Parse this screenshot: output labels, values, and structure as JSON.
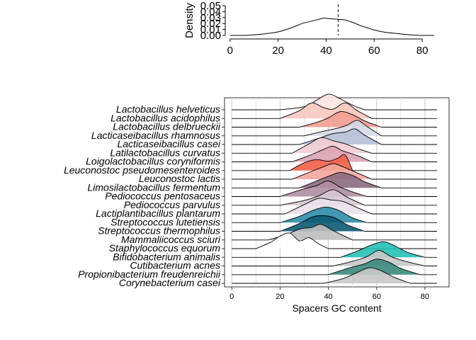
{
  "chart_data": [
    {
      "type": "area",
      "ylabel": "Density",
      "xlabel": "",
      "xlim": [
        -2,
        90
      ],
      "ylim": [
        0,
        0.05
      ],
      "xticks": [
        0,
        20,
        40,
        60,
        80
      ],
      "yticks": [
        0.0,
        0.01,
        0.02,
        0.03,
        0.04,
        0.05
      ],
      "ytick_labels": [
        "0.00",
        "0.01",
        "0.02",
        "0.03",
        "0.04",
        "0.05"
      ],
      "reference_line_x": 45,
      "reference_line_style": "dashed",
      "grid": false,
      "x": [
        0,
        5,
        10,
        15,
        20,
        25,
        30,
        33,
        36,
        39,
        42,
        45,
        48,
        51,
        54,
        57,
        60,
        65,
        70,
        75,
        80,
        85
      ],
      "y": [
        0.0,
        0.0,
        0.001,
        0.003,
        0.006,
        0.012,
        0.02,
        0.023,
        0.026,
        0.029,
        0.028,
        0.027,
        0.026,
        0.022,
        0.017,
        0.013,
        0.009,
        0.005,
        0.003,
        0.001,
        0.0,
        0.0
      ]
    },
    {
      "type": "area",
      "subtype": "ridgeline",
      "xlabel": "Spacers GC content",
      "ylabel": "",
      "xlim": [
        -3,
        90
      ],
      "xticks": [
        0,
        20,
        40,
        60,
        80
      ],
      "grid": true,
      "series": [
        {
          "name": "Lactobacillus helveticus",
          "color": "#fbe6e1",
          "x": [
            20,
            30,
            35,
            40,
            45,
            50,
            55
          ],
          "values": [
            0,
            0.2,
            0.6,
            1.0,
            0.7,
            0.3,
            0
          ]
        },
        {
          "name": "Lactobacillus acidophilus",
          "color": "#f6c8c0",
          "x": [
            20,
            28,
            33,
            38,
            42,
            47,
            52,
            58
          ],
          "values": [
            0,
            0.5,
            1.0,
            0.7,
            0.6,
            1.0,
            0.5,
            0
          ]
        },
        {
          "name": "Lactobacillus delbrueckii",
          "color": "#f19c8e",
          "x": [
            28,
            35,
            40,
            45,
            50,
            55,
            62
          ],
          "values": [
            0,
            0.3,
            0.6,
            1.0,
            0.8,
            0.4,
            0
          ]
        },
        {
          "name": "Lacticaseibacillus rhamnosus",
          "color": "#d5d9e6",
          "x": [
            30,
            38,
            44,
            48,
            52,
            56,
            62
          ],
          "values": [
            0,
            0.3,
            0.5,
            0.7,
            1.0,
            0.6,
            0
          ]
        },
        {
          "name": "Lacticaseibacillus casei",
          "color": "#b5c1d9",
          "x": [
            28,
            36,
            42,
            47,
            51,
            55,
            62
          ],
          "values": [
            0,
            0.4,
            0.7,
            0.8,
            1.0,
            0.6,
            0
          ]
        },
        {
          "name": "Latilactobacillus curvatus",
          "color": "#f2ccd4",
          "x": [
            25,
            32,
            37,
            42,
            47,
            52,
            58
          ],
          "values": [
            0,
            0.6,
            1.0,
            0.8,
            0.6,
            0.3,
            0
          ]
        },
        {
          "name": "Loigolactobacillus coryniformis",
          "color": "#dba3b3",
          "x": [
            25,
            32,
            38,
            42,
            46,
            52,
            58
          ],
          "values": [
            0,
            0.4,
            0.8,
            1.0,
            0.7,
            0.4,
            0
          ]
        },
        {
          "name": "Leuconostoc pseudomesenteroides",
          "color": "#f25f45",
          "x": [
            24,
            30,
            35,
            40,
            44,
            47,
            50
          ],
          "values": [
            0,
            0.5,
            0.7,
            0.6,
            0.8,
            1.0,
            0
          ]
        },
        {
          "name": "Leuconostoc lactis",
          "color": "#f4a6a0",
          "x": [
            25,
            33,
            38,
            42,
            46,
            52,
            58
          ],
          "values": [
            0,
            0.5,
            0.8,
            1.0,
            0.8,
            0.4,
            0
          ]
        },
        {
          "name": "Limosilactobacillus fermentum",
          "color": "#8b6b7e",
          "x": [
            28,
            36,
            41,
            45,
            50,
            55,
            62
          ],
          "values": [
            0,
            0.5,
            0.8,
            1.0,
            0.8,
            0.4,
            0
          ]
        },
        {
          "name": "Pediococcus pentosaceus",
          "color": "#b08ea3",
          "x": [
            20,
            28,
            35,
            40,
            45,
            50,
            56
          ],
          "values": [
            0,
            0.4,
            0.7,
            1.0,
            0.6,
            0.3,
            0
          ]
        },
        {
          "name": "Pediococcus parvulus",
          "color": "#d6c7d3",
          "x": [
            20,
            30,
            36,
            42,
            48,
            55
          ],
          "values": [
            0,
            0.3,
            0.6,
            1.0,
            0.5,
            0
          ]
        },
        {
          "name": "Lactiplantibacillus plantarum",
          "color": "#e8e0ea",
          "x": [
            22,
            30,
            36,
            41,
            46,
            52,
            58
          ],
          "values": [
            0,
            0.6,
            1.0,
            0.9,
            0.8,
            0.4,
            0
          ]
        },
        {
          "name": "Streptococcus lutetiensis",
          "color": "#2f8ea8",
          "x": [
            20,
            28,
            34,
            39,
            44,
            50,
            56
          ],
          "values": [
            0,
            0.4,
            0.8,
            1.0,
            0.8,
            0.3,
            0
          ]
        },
        {
          "name": "Streptococcus thermophilus",
          "color": "#0d5a73",
          "x": [
            20,
            28,
            33,
            37,
            42,
            48,
            55
          ],
          "values": [
            0,
            0.5,
            0.9,
            1.0,
            0.9,
            0.4,
            0
          ]
        },
        {
          "name": "Mammaliicoccus sciuri",
          "color": "#bfbfbf",
          "x": [
            15,
            22,
            28,
            33,
            37,
            42,
            50
          ],
          "values": [
            0,
            0.3,
            0.7,
            0.8,
            1.0,
            0.6,
            0
          ]
        },
        {
          "name": "Staphylococcus equorum",
          "color": "#ffffff",
          "x": [
            10,
            16,
            20,
            24,
            28,
            32,
            36,
            40
          ],
          "values": [
            0,
            0.4,
            0.8,
            1.0,
            0.5,
            0.7,
            0.3,
            0
          ]
        },
        {
          "name": "Bifidobacterium animalis",
          "color": "#26c0b6",
          "x": [
            45,
            52,
            58,
            63,
            68,
            73,
            80
          ],
          "values": [
            0,
            0.4,
            0.8,
            1.0,
            0.7,
            0.3,
            0
          ]
        },
        {
          "name": "Cutibacterium acnes",
          "color": "#c8c8c8",
          "x": [
            42,
            50,
            56,
            61,
            66,
            72,
            80
          ],
          "values": [
            0,
            0.3,
            0.6,
            1.0,
            0.6,
            0.3,
            0
          ]
        },
        {
          "name": "Propionibacterium freudenreichii",
          "color": "#3a8a7c",
          "x": [
            40,
            48,
            55,
            60,
            65,
            70,
            78
          ],
          "values": [
            0,
            0.4,
            0.7,
            1.0,
            0.8,
            0.4,
            0
          ]
        },
        {
          "name": "Corynebacterium casei",
          "color": "#c8c8c8",
          "x": [
            38,
            46,
            52,
            57,
            62,
            67,
            74
          ],
          "values": [
            0,
            0.3,
            0.7,
            1.0,
            0.8,
            0.4,
            0
          ]
        }
      ]
    }
  ]
}
